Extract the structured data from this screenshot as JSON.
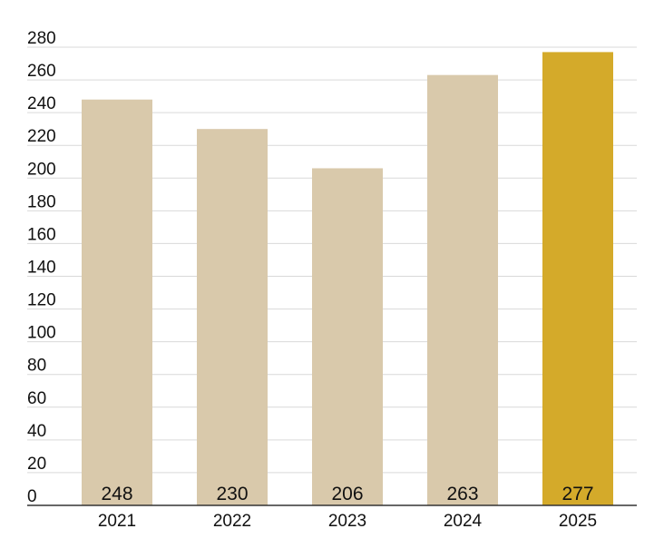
{
  "chart_data": {
    "type": "bar",
    "categories": [
      "2021",
      "2022",
      "2023",
      "2024",
      "2025"
    ],
    "values": [
      248,
      230,
      206,
      263,
      277
    ],
    "value_labels": [
      "248",
      "230",
      "206",
      "263",
      "277"
    ],
    "y_ticks": [
      "0",
      "20",
      "40",
      "60",
      "80",
      "100",
      "120",
      "140",
      "160",
      "180",
      "200",
      "220",
      "240",
      "260",
      "280"
    ],
    "ylim": [
      0,
      280
    ],
    "grid": true,
    "legend": "none",
    "title": "",
    "xlabel": "",
    "ylabel": "",
    "highlight_index": 4,
    "colors": {
      "bar": "#d9c9ab",
      "highlight": "#d4aa2a",
      "grid": "#d9d9d9",
      "baseline": "#333333"
    }
  }
}
